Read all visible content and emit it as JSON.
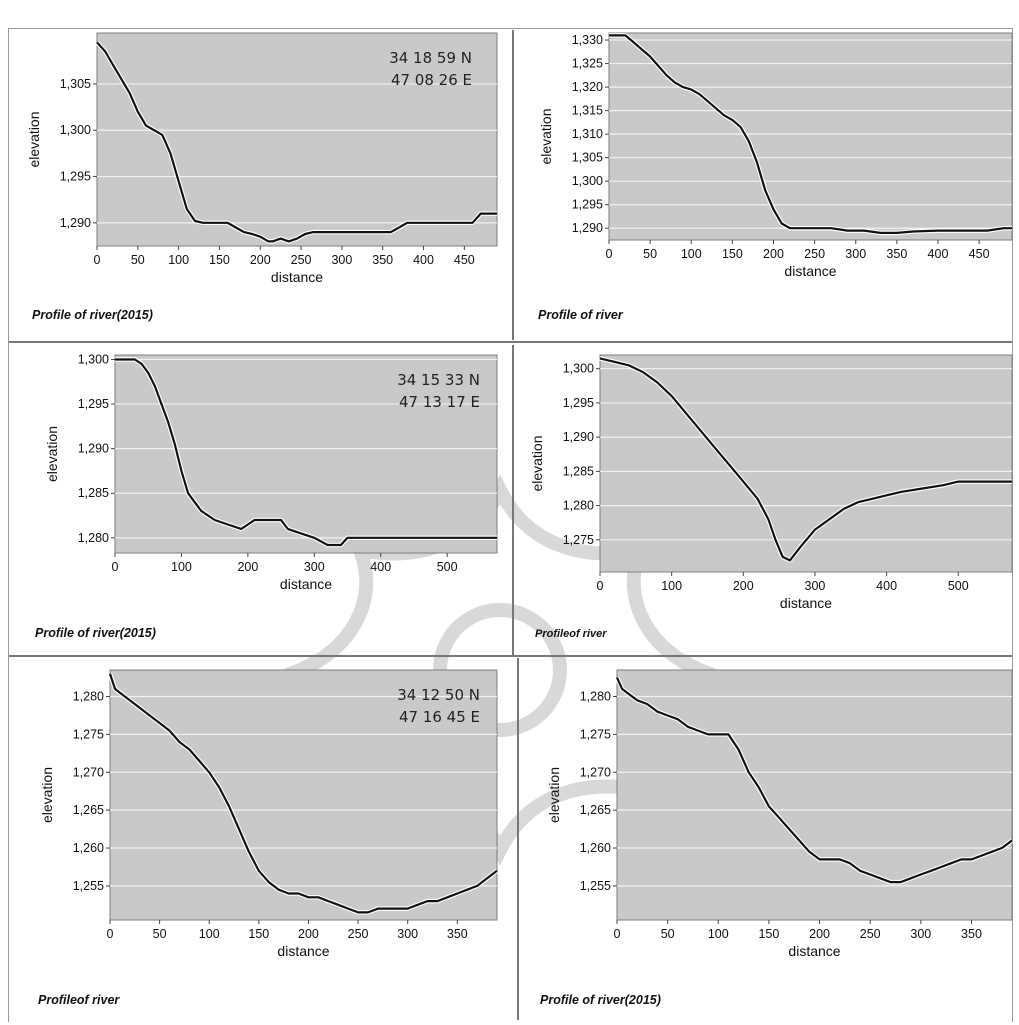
{
  "figure": {
    "colors": {
      "line": "#111111",
      "plot_bg": "#c9c9c9",
      "grid": "#f2f2f2",
      "divider": "#777777"
    }
  },
  "chart_data": [
    {
      "type": "line",
      "caption": "Profile of river(2015)",
      "coords": [
        "34 18 59 N",
        "47 08 26   E"
      ],
      "xlabel": "distance",
      "ylabel": "elevation",
      "xlim": [
        0,
        490
      ],
      "ylim": [
        1287.5,
        1310.5
      ],
      "xticks": [
        0,
        50,
        100,
        150,
        200,
        250,
        300,
        350,
        400,
        450
      ],
      "xtick_labels": [
        "0",
        "50",
        "100",
        "150",
        "200",
        "250",
        "300",
        "350",
        "400",
        "450"
      ],
      "yticks": [
        1290,
        1295,
        1300,
        1305
      ],
      "ytick_labels": [
        "1,290",
        "1,295",
        "1,300",
        "1,305"
      ],
      "grid": true,
      "series": [
        {
          "x": [
            0,
            10,
            20,
            30,
            40,
            50,
            60,
            70,
            80,
            90,
            100,
            110,
            120,
            130,
            140,
            150,
            160,
            170,
            180,
            190,
            200,
            210,
            215,
            225,
            235,
            245,
            255,
            265,
            280,
            300,
            320,
            340,
            360,
            370,
            380,
            400,
            420,
            440,
            460,
            470,
            490
          ],
          "y": [
            1309.5,
            1308.5,
            1307,
            1305.5,
            1304,
            1302,
            1300.5,
            1300,
            1299.5,
            1297.5,
            1294.5,
            1291.5,
            1290.2,
            1290,
            1290,
            1290,
            1290,
            1289.5,
            1289,
            1288.8,
            1288.5,
            1288,
            1288,
            1288.3,
            1288,
            1288.3,
            1288.8,
            1289,
            1289,
            1289,
            1289,
            1289,
            1289,
            1289.5,
            1290,
            1290,
            1290,
            1290,
            1290,
            1291,
            1291
          ]
        }
      ]
    },
    {
      "type": "line",
      "caption": "Profile of river",
      "xlabel": "distance",
      "ylabel": "elevation",
      "xlim": [
        0,
        490
      ],
      "ylim": [
        1287.5,
        1331.5
      ],
      "xticks": [
        0,
        50,
        100,
        150,
        200,
        250,
        300,
        350,
        400,
        450
      ],
      "xtick_labels": [
        "0",
        "50",
        "100",
        "150",
        "200",
        "250",
        "300",
        "350",
        "400",
        "450"
      ],
      "yticks": [
        1290,
        1295,
        1300,
        1305,
        1310,
        1315,
        1320,
        1325,
        1330
      ],
      "ytick_labels": [
        "1,290",
        "1,295",
        "1,300",
        "1,305",
        "1,310",
        "1,315",
        "1,320",
        "1,325",
        "1,330"
      ],
      "grid": true,
      "series": [
        {
          "x": [
            0,
            10,
            20,
            30,
            40,
            50,
            60,
            70,
            80,
            90,
            100,
            110,
            120,
            130,
            140,
            150,
            160,
            170,
            180,
            190,
            200,
            210,
            220,
            230,
            250,
            270,
            290,
            310,
            330,
            350,
            370,
            400,
            430,
            460,
            480,
            490
          ],
          "y": [
            1331,
            1331,
            1331,
            1329.5,
            1328,
            1326.5,
            1324.5,
            1322.5,
            1321,
            1320,
            1319.5,
            1318.5,
            1317,
            1315.5,
            1314,
            1313,
            1311.5,
            1308.5,
            1304,
            1298,
            1294,
            1291,
            1290,
            1290,
            1290,
            1290,
            1289.5,
            1289.5,
            1289,
            1289,
            1289.3,
            1289.5,
            1289.5,
            1289.5,
            1290,
            1290
          ]
        }
      ]
    },
    {
      "type": "line",
      "caption": "Profile of river(2015)",
      "coords": [
        "34 15 33  N",
        "47 13 17  E"
      ],
      "xlabel": "distance",
      "ylabel": "elevation",
      "xlim": [
        0,
        575
      ],
      "ylim": [
        1278.3,
        1300.5
      ],
      "xticks": [
        0,
        100,
        200,
        300,
        400,
        500
      ],
      "xtick_labels": [
        "0",
        "100",
        "200",
        "300",
        "400",
        "500"
      ],
      "yticks": [
        1280,
        1285,
        1290,
        1295,
        1300
      ],
      "ytick_labels": [
        "1,280",
        "1,285",
        "1,290",
        "1,295",
        "1,300"
      ],
      "grid": true,
      "series": [
        {
          "x": [
            0,
            10,
            20,
            30,
            40,
            50,
            60,
            70,
            80,
            90,
            100,
            110,
            120,
            130,
            150,
            170,
            190,
            200,
            210,
            230,
            250,
            260,
            280,
            300,
            320,
            340,
            350,
            360,
            380,
            400,
            450,
            500,
            540,
            575
          ],
          "y": [
            1300,
            1300,
            1300,
            1300,
            1299.5,
            1298.5,
            1297,
            1295,
            1293,
            1290.5,
            1287.5,
            1285,
            1284,
            1283,
            1282,
            1281.5,
            1281,
            1281.5,
            1282,
            1282,
            1282,
            1281,
            1280.5,
            1280,
            1279.2,
            1279.2,
            1280,
            1280,
            1280,
            1280,
            1280,
            1280,
            1280,
            1280
          ]
        }
      ]
    },
    {
      "type": "line",
      "caption": "Profileof river",
      "xlabel": "distance",
      "ylabel": "elevation",
      "xlim": [
        0,
        575
      ],
      "ylim": [
        1270.3,
        1302
      ],
      "xticks": [
        0,
        100,
        200,
        300,
        400,
        500
      ],
      "xtick_labels": [
        "0",
        "100",
        "200",
        "300",
        "400",
        "500"
      ],
      "yticks": [
        1275,
        1280,
        1285,
        1290,
        1295,
        1300
      ],
      "ytick_labels": [
        "1,275",
        "1,280",
        "1,285",
        "1,290",
        "1,295",
        "1,300"
      ],
      "grid": true,
      "series": [
        {
          "x": [
            0,
            20,
            40,
            60,
            80,
            100,
            120,
            140,
            160,
            180,
            200,
            220,
            235,
            245,
            255,
            265,
            280,
            300,
            320,
            340,
            360,
            380,
            400,
            420,
            450,
            480,
            500,
            520,
            550,
            575
          ],
          "y": [
            1301.5,
            1301,
            1300.5,
            1299.5,
            1298,
            1296,
            1293.5,
            1291,
            1288.5,
            1286,
            1283.5,
            1281,
            1278,
            1275,
            1272.5,
            1272,
            1274,
            1276.5,
            1278,
            1279.5,
            1280.5,
            1281,
            1281.5,
            1282,
            1282.5,
            1283,
            1283.5,
            1283.5,
            1283.5,
            1283.5
          ]
        }
      ]
    },
    {
      "type": "line",
      "caption": "Profileof river",
      "coords": [
        "34 12 50 N",
        "47 16 45 E"
      ],
      "xlabel": "distance",
      "ylabel": "elevation",
      "xlim": [
        0,
        390
      ],
      "ylim": [
        1250.5,
        1283.5
      ],
      "xticks": [
        0,
        50,
        100,
        150,
        200,
        250,
        300,
        350
      ],
      "xtick_labels": [
        "0",
        "50",
        "100",
        "150",
        "200",
        "250",
        "300",
        "350"
      ],
      "yticks": [
        1255,
        1260,
        1265,
        1270,
        1275,
        1280
      ],
      "ytick_labels": [
        "1,255",
        "1,260",
        "1,265",
        "1,270",
        "1,275",
        "1,280"
      ],
      "grid": true,
      "series": [
        {
          "x": [
            0,
            5,
            10,
            20,
            30,
            40,
            50,
            60,
            70,
            80,
            90,
            100,
            110,
            120,
            130,
            140,
            150,
            160,
            170,
            180,
            190,
            200,
            210,
            220,
            230,
            240,
            250,
            260,
            270,
            280,
            290,
            300,
            310,
            320,
            330,
            340,
            350,
            360,
            370,
            380,
            390
          ],
          "y": [
            1283,
            1281,
            1280.5,
            1279.5,
            1278.5,
            1277.5,
            1276.5,
            1275.5,
            1274,
            1273,
            1271.5,
            1270,
            1268,
            1265.5,
            1262.5,
            1259.5,
            1257,
            1255.5,
            1254.5,
            1254,
            1254,
            1253.5,
            1253.5,
            1253,
            1252.5,
            1252,
            1251.5,
            1251.5,
            1252,
            1252,
            1252,
            1252,
            1252.5,
            1253,
            1253,
            1253.5,
            1254,
            1254.5,
            1255,
            1256,
            1257
          ]
        }
      ]
    },
    {
      "type": "line",
      "caption": "Profile of river(2015)",
      "xlabel": "distance",
      "ylabel": "elevation",
      "xlim": [
        0,
        390
      ],
      "ylim": [
        1250.5,
        1283.5
      ],
      "xticks": [
        0,
        50,
        100,
        150,
        200,
        250,
        300,
        350
      ],
      "xtick_labels": [
        "0",
        "50",
        "100",
        "150",
        "200",
        "250",
        "300",
        "350"
      ],
      "yticks": [
        1255,
        1260,
        1265,
        1270,
        1275,
        1280
      ],
      "ytick_labels": [
        "1,255",
        "1,260",
        "1,265",
        "1,270",
        "1,275",
        "1,280"
      ],
      "grid": true,
      "series": [
        {
          "x": [
            0,
            5,
            10,
            20,
            30,
            40,
            50,
            60,
            70,
            80,
            90,
            100,
            110,
            120,
            130,
            140,
            150,
            160,
            170,
            180,
            190,
            200,
            210,
            220,
            230,
            240,
            250,
            260,
            270,
            280,
            290,
            300,
            310,
            320,
            330,
            340,
            350,
            360,
            370,
            380,
            390
          ],
          "y": [
            1282.5,
            1281,
            1280.5,
            1279.5,
            1279,
            1278,
            1277.5,
            1277,
            1276,
            1275.5,
            1275,
            1275,
            1275,
            1273,
            1270,
            1268,
            1265.5,
            1264,
            1262.5,
            1261,
            1259.5,
            1258.5,
            1258.5,
            1258.5,
            1258,
            1257,
            1256.5,
            1256,
            1255.5,
            1255.5,
            1256,
            1256.5,
            1257,
            1257.5,
            1258,
            1258.5,
            1258.5,
            1259,
            1259.5,
            1260,
            1261
          ]
        }
      ]
    }
  ]
}
